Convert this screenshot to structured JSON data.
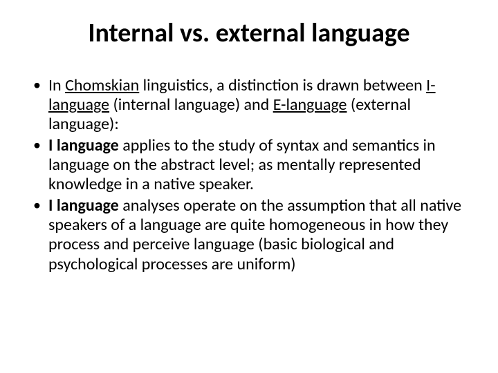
{
  "title": "Internal vs. external language",
  "bullets": [
    {
      "pre": "In ",
      "u1": "Chomskian",
      "mid1": " linguistics, a distinction is drawn between ",
      "u2": "I-language",
      "mid2": " (internal language) and ",
      "u3": "E-language",
      "post": " (external language):"
    },
    {
      "bold": "I language",
      "rest": " applies to the study of syntax and semantics in language on the abstract level; as mentally represented knowledge in a native speaker."
    },
    {
      "bold": "I language",
      "rest": " analyses operate on the assumption that all native speakers of a language are quite homogeneous in how they process and perceive language (basic biological and psychological processes are uniform)"
    }
  ]
}
